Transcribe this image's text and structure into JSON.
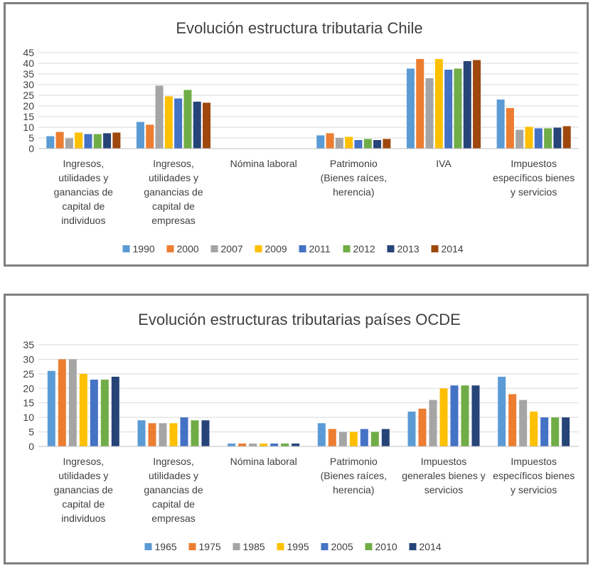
{
  "chart_data": [
    {
      "type": "bar",
      "title": "Evolución estructura tributaria Chile",
      "xlabel": "",
      "ylabel": "",
      "ylim": [
        0,
        45
      ],
      "ytick_step": 5,
      "grid": true,
      "legend_position": "bottom",
      "categories": [
        "Ingresos, utilidades y ganancias de capital de individuos",
        "Ingresos, utilidades y ganancias de capital de empresas",
        "Nómina laboral",
        "Patrimonio (Bienes raíces, herencia)",
        "IVA",
        "Impuestos específicos bienes y servicios"
      ],
      "category_label_lines": [
        [
          "Ingresos,",
          "utilidades y",
          "ganancias de",
          "capital de",
          "individuos"
        ],
        [
          "Ingresos,",
          "utilidades y",
          "ganancias de",
          "capital de",
          "empresas"
        ],
        [
          "Nómina laboral"
        ],
        [
          "Patrimonio",
          "(Bienes raíces,",
          "herencia)"
        ],
        [
          "IVA"
        ],
        [
          "Impuestos",
          "específicos bienes",
          "y servicios"
        ]
      ],
      "series": [
        {
          "name": "1990",
          "color": "#5b9bd5",
          "values": [
            5.8,
            12.5,
            0,
            6.2,
            37.5,
            23.0
          ]
        },
        {
          "name": "2000",
          "color": "#ed7d31",
          "values": [
            7.8,
            11.2,
            0,
            7.2,
            42.0,
            19.0
          ]
        },
        {
          "name": "2007",
          "color": "#a5a5a5",
          "values": [
            4.8,
            29.5,
            0,
            5.0,
            33.0,
            8.8
          ]
        },
        {
          "name": "2009",
          "color": "#ffc000",
          "values": [
            7.5,
            24.5,
            0,
            5.5,
            42.0,
            10.2
          ]
        },
        {
          "name": "2011",
          "color": "#4472c4",
          "values": [
            6.8,
            23.5,
            0,
            4.0,
            37.0,
            9.5
          ]
        },
        {
          "name": "2012",
          "color": "#70ad47",
          "values": [
            6.8,
            27.5,
            0,
            4.5,
            37.5,
            9.5
          ]
        },
        {
          "name": "2013",
          "color": "#264478",
          "values": [
            7.2,
            22.0,
            0,
            4.0,
            41.0,
            9.8
          ]
        },
        {
          "name": "2014",
          "color": "#9e480e",
          "values": [
            7.5,
            21.5,
            0,
            4.5,
            41.5,
            10.5
          ]
        }
      ]
    },
    {
      "type": "bar",
      "title": "Evolución estructuras tributarias países OCDE",
      "xlabel": "",
      "ylabel": "",
      "ylim": [
        0,
        35
      ],
      "ytick_step": 5,
      "grid": true,
      "legend_position": "bottom",
      "categories": [
        "Ingresos, utilidades y ganancias de capital de individuos",
        "Ingresos, utilidades y ganancias de capital de empresas",
        "Nómina laboral",
        "Patrimonio (Bienes raíces, herencia)",
        "Impuestos generales bienes y servicios",
        "Impuestos específicos bienes y servicios"
      ],
      "category_label_lines": [
        [
          "Ingresos,",
          "utilidades y",
          "ganancias de",
          "capital de",
          "individuos"
        ],
        [
          "Ingresos,",
          "utilidades y",
          "ganancias de",
          "capital de",
          "empresas"
        ],
        [
          "Nómina laboral"
        ],
        [
          "Patrimonio",
          "(Bienes raíces,",
          "herencia)"
        ],
        [
          "Impuestos",
          "generales bienes y",
          "servicios"
        ],
        [
          "Impuestos",
          "específicos bienes",
          "y servicios"
        ]
      ],
      "series": [
        {
          "name": "1965",
          "color": "#5b9bd5",
          "values": [
            26,
            9,
            1,
            8,
            12,
            24
          ]
        },
        {
          "name": "1975",
          "color": "#ed7d31",
          "values": [
            30,
            8,
            1,
            6,
            13,
            18
          ]
        },
        {
          "name": "1985",
          "color": "#a5a5a5",
          "values": [
            30,
            8,
            1,
            5,
            16,
            16
          ]
        },
        {
          "name": "1995",
          "color": "#ffc000",
          "values": [
            25,
            8,
            1,
            5,
            20,
            12
          ]
        },
        {
          "name": "2005",
          "color": "#4472c4",
          "values": [
            23,
            10,
            1,
            6,
            21,
            10
          ]
        },
        {
          "name": "2010",
          "color": "#70ad47",
          "values": [
            23,
            9,
            1,
            5,
            21,
            10
          ]
        },
        {
          "name": "2014",
          "color": "#264478",
          "values": [
            24,
            9,
            1,
            6,
            21,
            10
          ]
        }
      ]
    }
  ]
}
